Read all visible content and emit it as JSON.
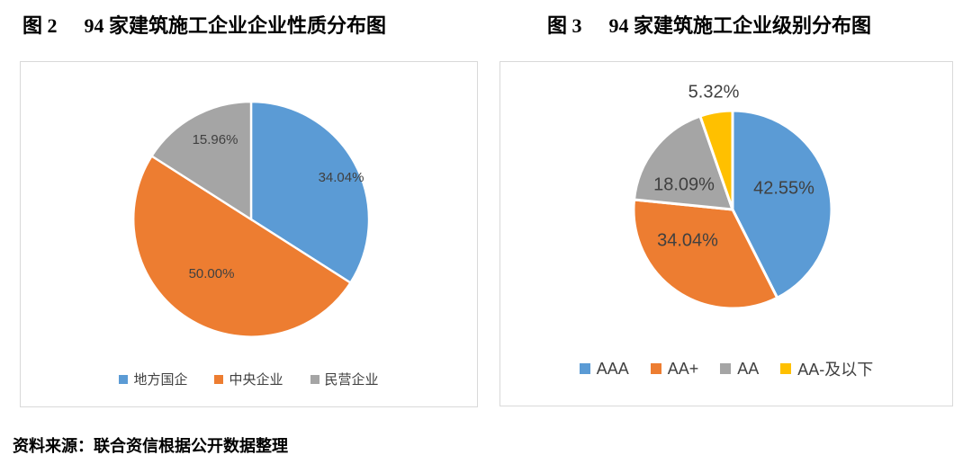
{
  "figures": [
    {
      "prefix": "图 2",
      "title": "94 家建筑施工企业企业性质分布图"
    },
    {
      "prefix": "图 3",
      "title": "94 家建筑施工企业级别分布图"
    }
  ],
  "source_note": "资料来源：联合资信根据公开数据整理",
  "colors": {
    "label_text": "#404040",
    "panel_border": "#d9d9d9",
    "blue": "#5b9bd5",
    "orange": "#ed7d31",
    "gray": "#a5a5a5",
    "yellow": "#ffc000"
  },
  "chart_data": [
    {
      "type": "pie",
      "title": "94 家建筑施工企业企业性质分布图",
      "categories": [
        "地方国企",
        "中央企业",
        "民营企业"
      ],
      "values": [
        34.04,
        50.0,
        15.96
      ],
      "data_labels": [
        "34.04%",
        "50.00%",
        "15.96%"
      ],
      "colors": [
        "#5b9bd5",
        "#ed7d31",
        "#a5a5a5"
      ],
      "start_angle_deg": 0,
      "direction": "clockwise",
      "legend_position": "bottom"
    },
    {
      "type": "pie",
      "title": "94 家建筑施工企业级别分布图",
      "categories": [
        "AAA",
        "AA+",
        "AA",
        "AA-及以下"
      ],
      "values": [
        42.55,
        34.04,
        18.09,
        5.32
      ],
      "data_labels": [
        "42.55%",
        "34.04%",
        "18.09%",
        "5.32%"
      ],
      "colors": [
        "#5b9bd5",
        "#ed7d31",
        "#a5a5a5",
        "#ffc000"
      ],
      "start_angle_deg": 0,
      "direction": "clockwise",
      "legend_position": "bottom"
    }
  ]
}
